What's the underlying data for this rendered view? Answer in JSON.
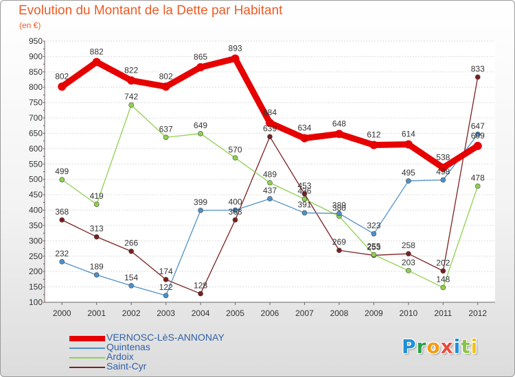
{
  "header": {
    "title": "Evolution du Montant de la Dette par Habitant",
    "subtitle": "(en €)"
  },
  "brand": {
    "logo_text": "Proxiti",
    "logo_letters": [
      {
        "char": "P",
        "color": "#1e90d6"
      },
      {
        "char": "r",
        "color": "#2aa14a"
      },
      {
        "char": "o",
        "color": "#f39c12"
      },
      {
        "char": "x",
        "color": "#e74c3c"
      },
      {
        "char": "i",
        "color": "#1e90d6"
      },
      {
        "char": "t",
        "color": "#8bc34a"
      },
      {
        "char": "i",
        "color": "#f1c40f"
      }
    ]
  },
  "chart_data": {
    "type": "line",
    "title": "Evolution du Montant de la Dette par Habitant",
    "subtitle": "(en €)",
    "xlabel": "",
    "ylabel": "",
    "x": [
      "2000",
      "2001",
      "2002",
      "2003",
      "2004",
      "2005",
      "2006",
      "2007",
      "2008",
      "2009",
      "2010",
      "2011",
      "2012"
    ],
    "ylim": [
      100,
      950
    ],
    "yticks": [
      100,
      150,
      200,
      250,
      300,
      350,
      400,
      450,
      500,
      550,
      600,
      650,
      700,
      750,
      800,
      850,
      900,
      950
    ],
    "grid": "horizontal",
    "legend_position": "bottom-left",
    "series": [
      {
        "name": "VERNOSC-LèS-ANNONAY",
        "color": "#e60000",
        "values": [
          802,
          882,
          822,
          802,
          865,
          893,
          684,
          634,
          648,
          612,
          614,
          538,
          609
        ]
      },
      {
        "name": "Quintenas",
        "color": "#4d90c8",
        "values": [
          232,
          189,
          154,
          122,
          399,
          400,
          437,
          391,
          389,
          323,
          495,
          498,
          647
        ]
      },
      {
        "name": "Ardoix",
        "color": "#8fd14f",
        "values": [
          499,
          419,
          742,
          637,
          649,
          570,
          489,
          436,
          380,
          255,
          203,
          148,
          478
        ]
      },
      {
        "name": "Saint-Cyr",
        "color": "#7b1f1f",
        "values": [
          368,
          313,
          266,
          174,
          128,
          368,
          639,
          453,
          269,
          253,
          258,
          202,
          833
        ]
      }
    ]
  }
}
